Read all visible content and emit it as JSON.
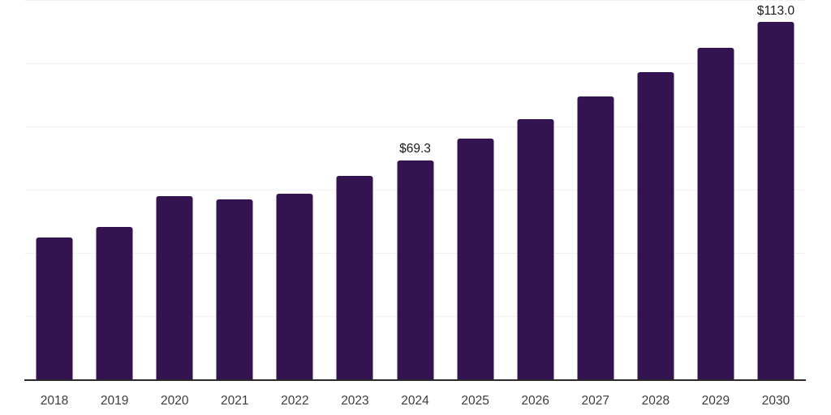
{
  "chart_data": {
    "type": "bar",
    "title": "",
    "xlabel": "",
    "ylabel": "",
    "categories": [
      "2018",
      "2019",
      "2020",
      "2021",
      "2022",
      "2023",
      "2024",
      "2025",
      "2026",
      "2027",
      "2028",
      "2029",
      "2030"
    ],
    "values": [
      44.9,
      48.1,
      57.9,
      56.8,
      58.8,
      64.4,
      69.3,
      76.1,
      82.3,
      89.4,
      97.3,
      104.8,
      113.0
    ],
    "data_labels": [
      "",
      "",
      "",
      "",
      "",
      "",
      "$69.3",
      "",
      "",
      "",
      "",
      "",
      "$113.0"
    ],
    "ylim": [
      0,
      120
    ],
    "gridline_values": [
      20,
      40,
      60,
      80,
      100,
      120
    ],
    "grid": "horizontal",
    "legend": "none",
    "bar_color": "#341450",
    "axis_line_color": "#2b2b2b",
    "gridline_color": "#f2f2f2",
    "tick_label_color": "#3d3d3d",
    "data_label_color": "#1a1a1a"
  }
}
